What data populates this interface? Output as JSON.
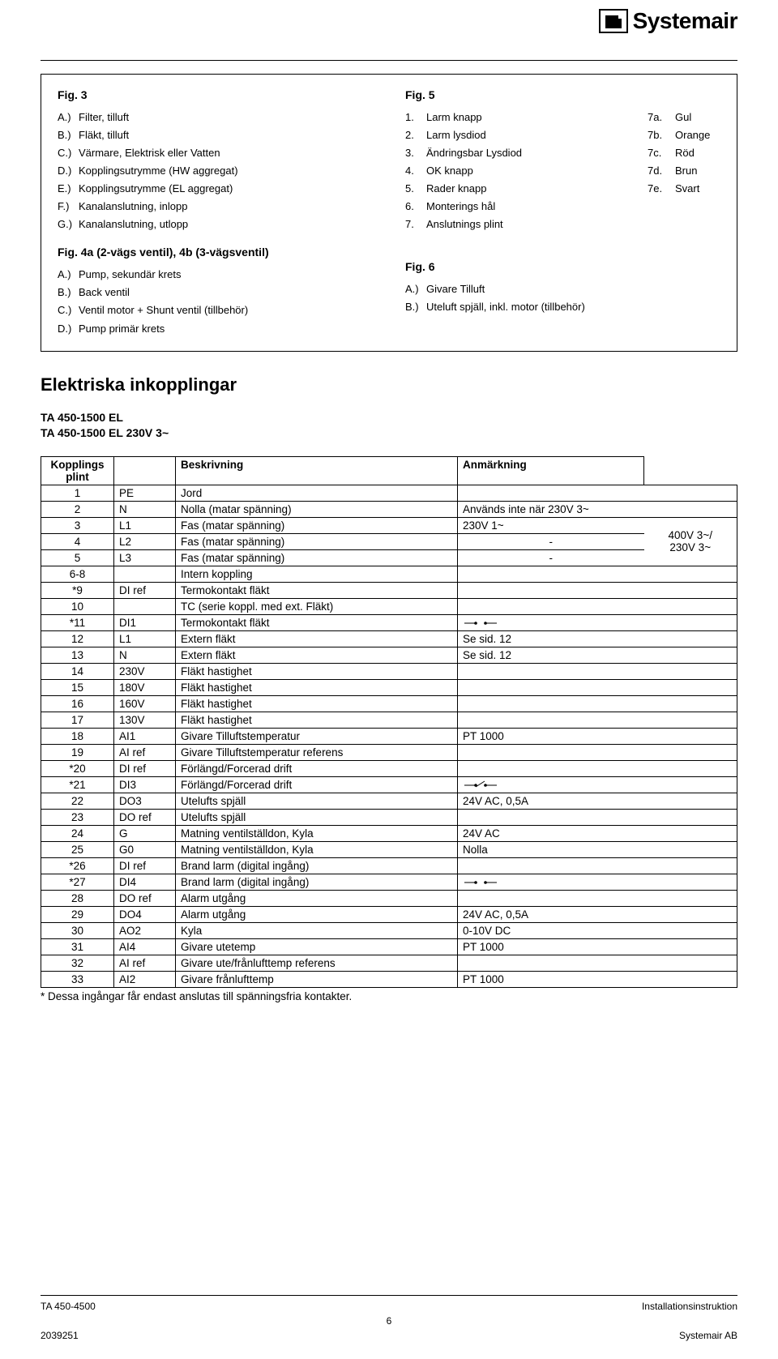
{
  "brand": "Systemair",
  "fig3": {
    "title": "Fig. 3",
    "items": [
      {
        "k": "A.)",
        "v": "Filter, tilluft"
      },
      {
        "k": "B.)",
        "v": "Fläkt, tilluft"
      },
      {
        "k": "C.)",
        "v": "Värmare, Elektrisk eller Vatten"
      },
      {
        "k": "D.)",
        "v": "Kopplingsutrymme (HW aggregat)"
      },
      {
        "k": "E.)",
        "v": "Kopplingsutrymme (EL aggregat)"
      },
      {
        "k": "F.)",
        "v": "Kanalanslutning, inlopp"
      },
      {
        "k": "G.)",
        "v": "Kanalanslutning, utlopp"
      }
    ]
  },
  "fig4": {
    "title": "Fig. 4a (2-vägs ventil), 4b (3-vägsventil)",
    "items": [
      {
        "k": "A.)",
        "v": "Pump, sekundär krets"
      },
      {
        "k": "B.)",
        "v": "Back ventil"
      },
      {
        "k": "C.)",
        "v": "Ventil motor + Shunt ventil (tillbehör)"
      },
      {
        "k": "D.)",
        "v": "Pump primär krets"
      }
    ]
  },
  "fig5": {
    "title": "Fig. 5",
    "items": [
      {
        "k": "1.",
        "v": "Larm knapp",
        "c": "7a.",
        "r": "Gul"
      },
      {
        "k": "2.",
        "v": "Larm lysdiod",
        "c": "7b.",
        "r": "Orange"
      },
      {
        "k": "3.",
        "v": "Ändringsbar Lysdiod",
        "c": "7c.",
        "r": "Röd"
      },
      {
        "k": "4.",
        "v": "OK knapp",
        "c": "7d.",
        "r": "Brun"
      },
      {
        "k": "5.",
        "v": "Rader knapp",
        "c": "7e.",
        "r": "Svart"
      },
      {
        "k": "6.",
        "v": "Monterings hål",
        "c": "",
        "r": ""
      },
      {
        "k": "7.",
        "v": "Anslutnings plint",
        "c": "",
        "r": ""
      }
    ]
  },
  "fig6": {
    "title": "Fig. 6",
    "items": [
      {
        "k": "A.)",
        "v": "Givare Tilluft"
      },
      {
        "k": "B.)",
        "v": "Uteluft spjäll, inkl. motor (tillbehör)"
      }
    ]
  },
  "section_title": "Elektriska inkopplingar",
  "subheader_l1": "TA 450-1500 EL",
  "subheader_l2": "TA 450-1500 EL 230V 3~",
  "table": {
    "headers": {
      "a": "Kopplings plint",
      "b": "",
      "c": "Beskrivning",
      "d": "Anmärkning"
    },
    "rows": [
      {
        "a": "1",
        "b": "PE",
        "c": "Jord",
        "d": ""
      },
      {
        "a": "2",
        "b": "N",
        "c": "Nolla (matar spänning)",
        "d": "Används inte när 230V 3~"
      },
      {
        "a": "3",
        "b": "L1",
        "c": "Fas (matar spänning)",
        "d": "230V 1~"
      },
      {
        "a": "4",
        "b": "L2",
        "c": "Fas (matar spänning)",
        "d": "-"
      },
      {
        "a": "5",
        "b": "L3",
        "c": "Fas (matar spänning)",
        "d": "-"
      },
      {
        "a": "6-8",
        "b": "",
        "c": "Intern koppling",
        "d": ""
      },
      {
        "a": "*9",
        "b": "DI ref",
        "c": "Termokontakt fläkt",
        "d": ""
      },
      {
        "a": "10",
        "b": "",
        "c": "TC (serie koppl. med ext. Fläkt)",
        "d": ""
      },
      {
        "a": "*11",
        "b": "DI1",
        "c": "Termokontakt fläkt",
        "d": "SYM1"
      },
      {
        "a": "12",
        "b": "L1",
        "c": "Extern fläkt",
        "d": "Se sid. 12"
      },
      {
        "a": "13",
        "b": "N",
        "c": "Extern fläkt",
        "d": "Se sid. 12"
      },
      {
        "a": "14",
        "b": "230V",
        "c": "Fläkt hastighet",
        "d": ""
      },
      {
        "a": "15",
        "b": "180V",
        "c": "Fläkt hastighet",
        "d": ""
      },
      {
        "a": "16",
        "b": "160V",
        "c": "Fläkt hastighet",
        "d": ""
      },
      {
        "a": "17",
        "b": "130V",
        "c": "Fläkt hastighet",
        "d": ""
      },
      {
        "a": "18",
        "b": "AI1",
        "c": "Givare Tilluftstemperatur",
        "d": "PT 1000"
      },
      {
        "a": "19",
        "b": "AI ref",
        "c": "Givare Tilluftstemperatur referens",
        "d": ""
      },
      {
        "a": "*20",
        "b": "DI ref",
        "c": "Förlängd/Forcerad drift",
        "d": ""
      },
      {
        "a": "*21",
        "b": "DI3",
        "c": "Förlängd/Forcerad drift",
        "d": "SYM2"
      },
      {
        "a": "22",
        "b": "DO3",
        "c": "Utelufts spjäll",
        "d": "24V AC, 0,5A"
      },
      {
        "a": "23",
        "b": "DO ref",
        "c": "Utelufts spjäll",
        "d": ""
      },
      {
        "a": "24",
        "b": "G",
        "c": "Matning ventilställdon, Kyla",
        "d": "24V AC"
      },
      {
        "a": "25",
        "b": "G0",
        "c": "Matning ventilställdon, Kyla",
        "d": " Nolla"
      },
      {
        "a": "*26",
        "b": "DI ref",
        "c": "Brand larm (digital ingång)",
        "d": ""
      },
      {
        "a": "*27",
        "b": "DI4",
        "c": "Brand larm (digital ingång)",
        "d": "SYM1"
      },
      {
        "a": "28",
        "b": "DO ref",
        "c": "Alarm utgång",
        "d": ""
      },
      {
        "a": "29",
        "b": "DO4",
        "c": "Alarm utgång",
        "d": "24V AC, 0,5A"
      },
      {
        "a": "30",
        "b": "AO2",
        "c": "Kyla",
        "d": "0-10V DC"
      },
      {
        "a": "31",
        "b": "AI4",
        "c": "Givare utetemp",
        "d": "PT 1000"
      },
      {
        "a": "32",
        "b": "AI ref",
        "c": "Givare ute/frånlufttemp referens",
        "d": ""
      },
      {
        "a": "33",
        "b": "AI2",
        "c": "Givare frånlufttemp",
        "d": "PT 1000"
      }
    ],
    "merge_note": "400V 3~/\n230V 3~"
  },
  "footnote": "* Dessa ingångar får endast anslutas till spänningsfria kontakter.",
  "footer": {
    "left": "TA 450-4500",
    "right": "Installationsinstruktion",
    "page": "6",
    "bottom_left": "2039251",
    "bottom_right": "Systemair AB"
  }
}
